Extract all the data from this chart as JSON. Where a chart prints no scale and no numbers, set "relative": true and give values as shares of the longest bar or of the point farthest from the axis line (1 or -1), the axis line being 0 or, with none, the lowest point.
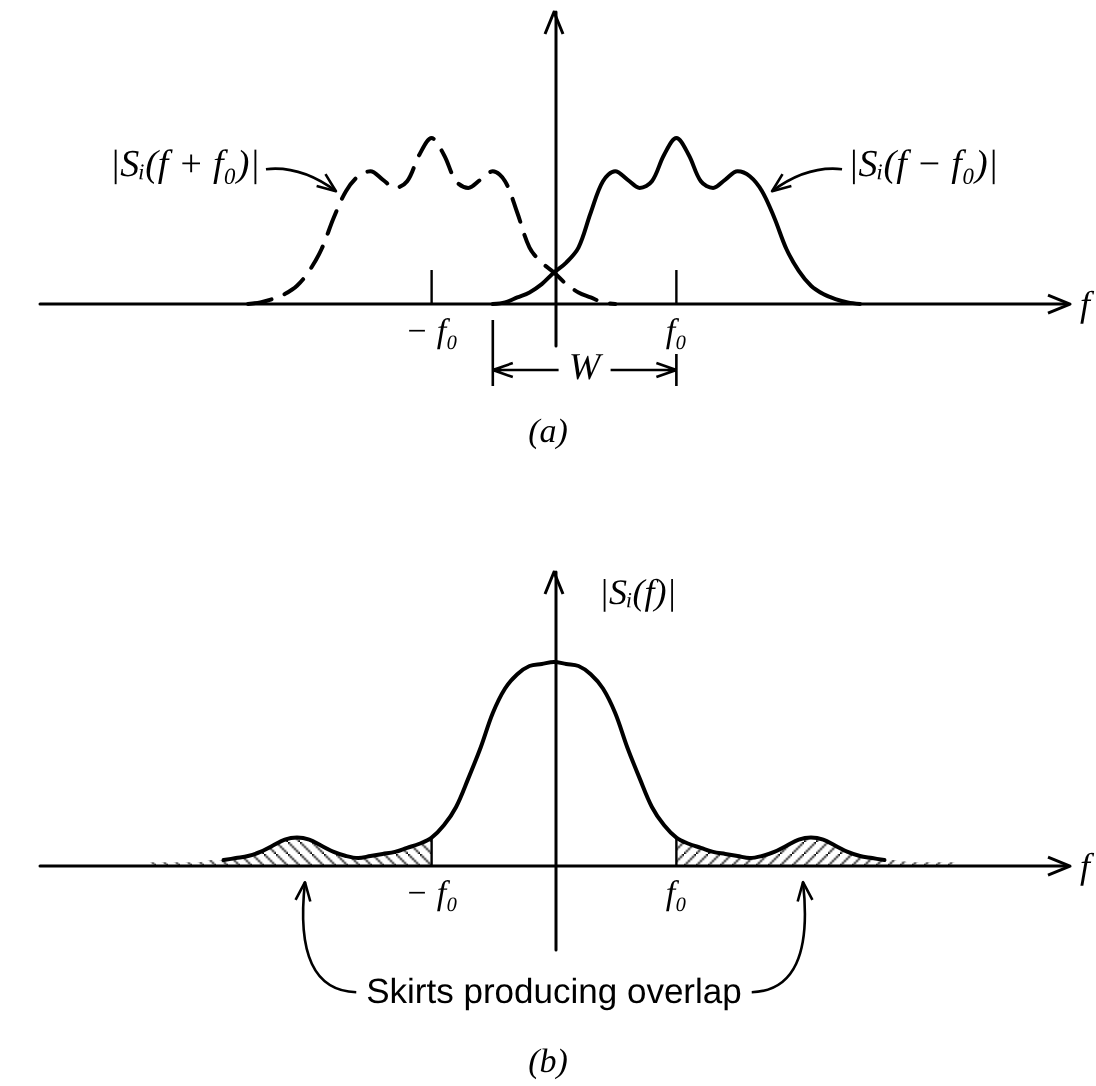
{
  "chart_data": [
    {
      "type": "line",
      "title": "(a)",
      "xlabel": "f",
      "relative": true,
      "marker": "none",
      "annotations": [
        "W"
      ],
      "categories": [
        null,
        null,
        null,
        null,
        null,
        null,
        null,
        null,
        null,
        null,
        null,
        null,
        null,
        null,
        null,
        null,
        null,
        null,
        null,
        null,
        null,
        null,
        null,
        null,
        null,
        null,
        null,
        null,
        null,
        null,
        null,
        null,
        "− f₀",
        null,
        null,
        null,
        null,
        null,
        null,
        null,
        null,
        null,
        null,
        null,
        null,
        null,
        null,
        null,
        null,
        null,
        null,
        null,
        "f₀",
        null,
        null,
        null,
        null,
        null,
        null,
        null,
        null,
        null,
        null,
        null,
        null,
        null,
        null,
        null,
        null,
        null,
        null,
        null,
        null,
        null,
        null,
        null,
        null,
        null,
        null,
        null,
        null,
        null,
        null,
        null,
        null
      ],
      "series": [
        {
          "name": "|Sᵢ(f + f₀)|",
          "color": "#000000",
          "line_style": "dashed",
          "values": [
            null,
            null,
            null,
            null,
            null,
            null,
            null,
            null,
            null,
            null,
            null,
            null,
            null,
            null,
            null,
            null,
            null,
            0,
            0.01,
            0.03,
            0.06,
            0.11,
            0.2,
            0.33,
            0.52,
            0.68,
            0.77,
            0.8,
            0.75,
            0.7,
            0.74,
            0.9,
            1,
            0.9,
            0.74,
            0.7,
            0.75,
            0.8,
            0.74,
            0.55,
            0.34,
            0.25,
            0.19,
            0.12,
            0.07,
            0.04,
            0.01,
            0,
            null,
            null,
            null,
            null,
            null,
            null,
            null,
            null,
            null,
            null,
            null,
            null,
            null,
            null,
            null,
            null,
            null,
            null,
            null,
            null,
            null,
            null,
            null,
            null,
            null,
            null,
            null,
            null,
            null,
            null,
            null,
            null,
            null,
            null,
            null,
            null,
            null
          ]
        },
        {
          "name": "|Sᵢ(f − f₀)|",
          "color": "#000000",
          "line_style": "solid",
          "values": [
            null,
            null,
            null,
            null,
            null,
            null,
            null,
            null,
            null,
            null,
            null,
            null,
            null,
            null,
            null,
            null,
            null,
            null,
            null,
            null,
            null,
            null,
            null,
            null,
            null,
            null,
            null,
            null,
            null,
            null,
            null,
            null,
            null,
            null,
            null,
            null,
            null,
            0,
            0.01,
            0.04,
            0.07,
            0.12,
            0.19,
            0.25,
            0.34,
            0.55,
            0.74,
            0.8,
            0.75,
            0.7,
            0.74,
            0.9,
            1,
            0.9,
            0.74,
            0.7,
            0.75,
            0.8,
            0.77,
            0.68,
            0.52,
            0.33,
            0.2,
            0.11,
            0.06,
            0.03,
            0.01,
            0,
            null,
            null,
            null,
            null,
            null,
            null,
            null,
            null,
            null,
            null,
            null,
            null,
            null,
            null,
            null,
            null,
            null
          ]
        }
      ]
    },
    {
      "type": "line",
      "title": "(b)",
      "xlabel": "f",
      "ylabel": "|Sᵢ(f)|",
      "relative": true,
      "marker": "none",
      "annotations": [
        "Skirts producing overlap"
      ],
      "categories": [
        null,
        null,
        null,
        null,
        null,
        null,
        null,
        null,
        null,
        null,
        null,
        null,
        null,
        null,
        null,
        null,
        null,
        null,
        null,
        null,
        null,
        null,
        null,
        null,
        null,
        null,
        null,
        null,
        null,
        null,
        null,
        null,
        "− f₀",
        null,
        null,
        null,
        null,
        null,
        null,
        null,
        null,
        null,
        null,
        null,
        null,
        null,
        null,
        null,
        null,
        null,
        null,
        null,
        "f₀",
        null,
        null,
        null,
        null,
        null,
        null,
        null,
        null,
        null,
        null,
        null,
        null,
        null,
        null,
        null,
        null,
        null,
        null,
        null,
        null,
        null,
        null,
        null,
        null,
        null,
        null,
        null,
        null,
        null,
        null,
        null,
        null
      ],
      "series": [
        {
          "color": "#000000",
          "line_style": "solid",
          "values": [
            null,
            null,
            null,
            null,
            null,
            null,
            null,
            null,
            null,
            null,
            null,
            null,
            null,
            null,
            null,
            0.03,
            0.04,
            0.05,
            0.07,
            0.1,
            0.13,
            0.14,
            0.13,
            0.1,
            0.07,
            0.05,
            0.04,
            0.05,
            0.06,
            0.07,
            0.09,
            0.11,
            0.14,
            0.2,
            0.29,
            0.43,
            0.58,
            0.75,
            0.87,
            0.94,
            0.98,
            0.99,
            1,
            0.99,
            0.98,
            0.94,
            0.87,
            0.75,
            0.58,
            0.43,
            0.29,
            0.2,
            0.14,
            0.11,
            0.09,
            0.07,
            0.06,
            0.05,
            0.04,
            0.05,
            0.07,
            0.1,
            0.13,
            0.14,
            0.13,
            0.1,
            0.07,
            0.05,
            0.04,
            0.03,
            null,
            null,
            null,
            null,
            null,
            null,
            null,
            null,
            null,
            null,
            null,
            null,
            null,
            null,
            null
          ]
        },
        {
          "type": "area",
          "color": "#000000",
          "values": [
            null,
            null,
            null,
            null,
            null,
            null,
            null,
            null,
            null,
            0.02,
            0.02,
            0.02,
            0.02,
            0.02,
            0.03,
            0.03,
            0.04,
            0.05,
            0.07,
            0.1,
            0.13,
            0.14,
            0.13,
            0.1,
            0.07,
            0.05,
            0.04,
            0.05,
            0.06,
            0.07,
            0.09,
            0.11,
            0.14,
            null,
            null,
            null,
            null,
            null,
            null,
            null,
            null,
            null,
            null,
            null,
            null,
            null,
            null,
            null,
            null,
            null,
            null,
            null,
            null,
            null,
            null,
            null,
            null,
            null,
            null,
            null,
            null,
            null,
            null,
            null,
            null,
            null,
            null,
            null,
            null,
            null,
            null,
            null,
            null,
            null,
            null,
            null,
            null,
            null,
            null,
            null,
            null,
            null,
            null,
            null,
            null
          ]
        },
        {
          "type": "area",
          "color": "#000000",
          "values": [
            null,
            null,
            null,
            null,
            null,
            null,
            null,
            null,
            null,
            null,
            null,
            null,
            null,
            null,
            null,
            null,
            null,
            null,
            null,
            null,
            null,
            null,
            null,
            null,
            null,
            null,
            null,
            null,
            null,
            null,
            null,
            null,
            null,
            null,
            null,
            null,
            null,
            null,
            null,
            null,
            null,
            null,
            null,
            null,
            null,
            null,
            null,
            null,
            null,
            null,
            null,
            null,
            0.14,
            0.11,
            0.09,
            0.07,
            0.06,
            0.05,
            0.04,
            0.05,
            0.07,
            0.1,
            0.13,
            0.14,
            0.13,
            0.1,
            0.07,
            0.05,
            0.04,
            0.03,
            0.03,
            0.02,
            0.02,
            0.02,
            0.02,
            0.02,
            null,
            null,
            null,
            null,
            null,
            null,
            null,
            null,
            null
          ]
        }
      ]
    }
  ]
}
